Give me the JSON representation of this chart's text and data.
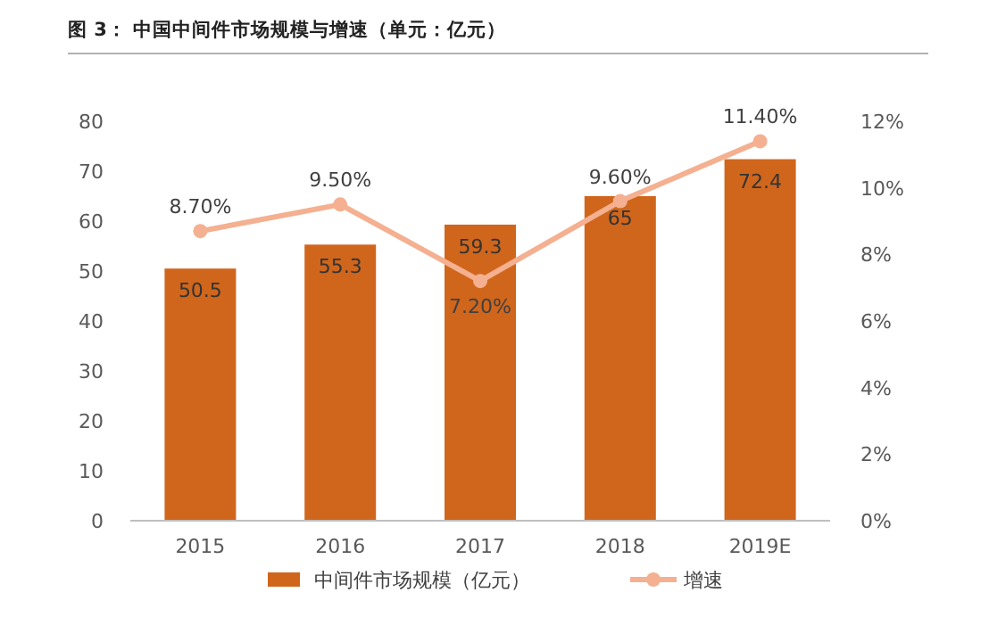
{
  "chart_data": {
    "type": "bar",
    "title": "图 3：  中国中间件市场规模与增速（单元：亿元）",
    "categories": [
      "2015",
      "2016",
      "2017",
      "2018",
      "2019E"
    ],
    "series": [
      {
        "name": "中间件市场规模（亿元）",
        "color": "#d0661c",
        "values": [
          50.5,
          55.3,
          59.3,
          65,
          72.4
        ],
        "value_labels": [
          "50.5",
          "55.3",
          "59.3",
          "65",
          "72.4"
        ]
      },
      {
        "name": "增速",
        "type": "line",
        "axis": "y2",
        "color": "#f4b090",
        "marker": "circle",
        "values": [
          8.7,
          9.5,
          7.2,
          9.6,
          11.4
        ],
        "value_labels": [
          "8.70%",
          "9.50%",
          "7.20%",
          "9.60%",
          "11.40%"
        ]
      }
    ],
    "ylim": [
      0,
      80
    ],
    "yticks": [
      0,
      10,
      20,
      30,
      40,
      50,
      60,
      70,
      80
    ],
    "y2lim": [
      0,
      12
    ],
    "y2ticks": [
      {
        "value": 0,
        "label": "0%"
      },
      {
        "value": 2,
        "label": "2%"
      },
      {
        "value": 4,
        "label": "4%"
      },
      {
        "value": 6,
        "label": "6%"
      },
      {
        "value": 8,
        "label": "8%"
      },
      {
        "value": 10,
        "label": "10%"
      },
      {
        "value": 12,
        "label": "12%"
      }
    ],
    "legend": "bottom"
  }
}
